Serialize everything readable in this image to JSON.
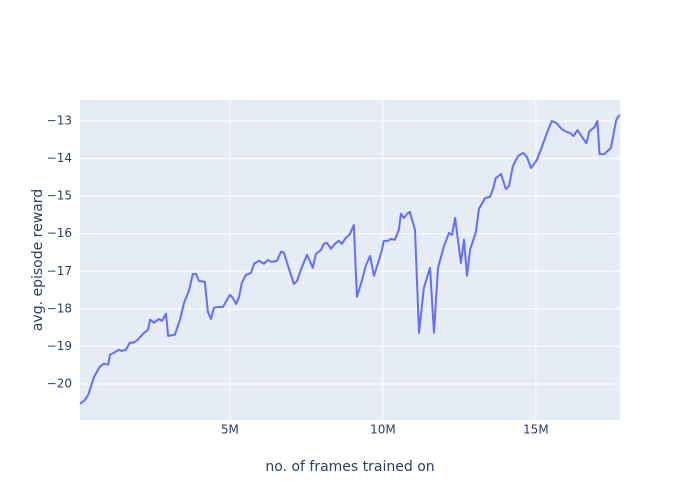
{
  "chart_data": {
    "type": "line",
    "xlabel": "no. of frames trained on",
    "ylabel": "avg. episode reward",
    "xlim": [
      100000,
      17750000
    ],
    "ylim": [
      -20.96,
      -12.44
    ],
    "xticks": [
      {
        "value": 5000000,
        "label": "5M"
      },
      {
        "value": 10000000,
        "label": "10M"
      },
      {
        "value": 15000000,
        "label": "15M"
      }
    ],
    "yticks": [
      {
        "value": -20,
        "label": "−20"
      },
      {
        "value": -19,
        "label": "−19"
      },
      {
        "value": -18,
        "label": "−18"
      },
      {
        "value": -17,
        "label": "−17"
      },
      {
        "value": -16,
        "label": "−16"
      },
      {
        "value": -15,
        "label": "−15"
      },
      {
        "value": -14,
        "label": "−14"
      },
      {
        "value": -13,
        "label": "−13"
      }
    ],
    "grid": true,
    "series": [
      {
        "color": "#636efa",
        "x": [
          100000,
          230000,
          360000,
          560000,
          750000,
          880000,
          1020000,
          1080000,
          1210000,
          1370000,
          1470000,
          1600000,
          1730000,
          1860000,
          1990000,
          2190000,
          2320000,
          2390000,
          2520000,
          2680000,
          2780000,
          2910000,
          2980000,
          3200000,
          3370000,
          3500000,
          3660000,
          3790000,
          3890000,
          3990000,
          4180000,
          4280000,
          4380000,
          4480000,
          4610000,
          4770000,
          5000000,
          5100000,
          5200000,
          5300000,
          5390000,
          5520000,
          5690000,
          5790000,
          5950000,
          6110000,
          6240000,
          6370000,
          6540000,
          6670000,
          6770000,
          6900000,
          7090000,
          7190000,
          7320000,
          7520000,
          7650000,
          7710000,
          7810000,
          7980000,
          8070000,
          8170000,
          8300000,
          8430000,
          8560000,
          8660000,
          8790000,
          8920000,
          9050000,
          9150000,
          9320000,
          9450000,
          9580000,
          9710000,
          9840000,
          9970000,
          10030000,
          10170000,
          10260000,
          10390000,
          10520000,
          10590000,
          10690000,
          10790000,
          10880000,
          11050000,
          11180000,
          11340000,
          11540000,
          11670000,
          11800000,
          12000000,
          12160000,
          12260000,
          12360000,
          12550000,
          12650000,
          12750000,
          12850000,
          13040000,
          13140000,
          13340000,
          13500000,
          13600000,
          13690000,
          13860000,
          14020000,
          14120000,
          14250000,
          14420000,
          14580000,
          14710000,
          14840000,
          15030000,
          15160000,
          15360000,
          15520000,
          15670000,
          15840000,
          16000000,
          16130000,
          16230000,
          16360000,
          16490000,
          16650000,
          16750000,
          16920000,
          17010000,
          17080000,
          17240000,
          17340000,
          17450000,
          17620000,
          17680000,
          17750000
        ],
        "values": [
          -20.53,
          -20.45,
          -20.31,
          -19.81,
          -19.54,
          -19.46,
          -19.49,
          -19.22,
          -19.17,
          -19.09,
          -19.12,
          -19.09,
          -18.9,
          -18.9,
          -18.82,
          -18.64,
          -18.56,
          -18.29,
          -18.37,
          -18.27,
          -18.32,
          -18.13,
          -18.72,
          -18.69,
          -18.29,
          -17.84,
          -17.52,
          -17.07,
          -17.07,
          -17.26,
          -17.28,
          -18.08,
          -18.27,
          -17.97,
          -17.95,
          -17.95,
          -17.63,
          -17.71,
          -17.87,
          -17.68,
          -17.31,
          -17.1,
          -17.04,
          -16.8,
          -16.72,
          -16.8,
          -16.7,
          -16.75,
          -16.72,
          -16.48,
          -16.51,
          -16.86,
          -17.34,
          -17.26,
          -16.96,
          -16.56,
          -16.8,
          -16.91,
          -16.54,
          -16.43,
          -16.27,
          -16.24,
          -16.4,
          -16.27,
          -16.19,
          -16.27,
          -16.11,
          -16.01,
          -15.77,
          -17.68,
          -17.23,
          -16.83,
          -16.59,
          -17.12,
          -16.78,
          -16.43,
          -16.19,
          -16.19,
          -16.14,
          -16.16,
          -15.9,
          -15.47,
          -15.58,
          -15.47,
          -15.42,
          -15.9,
          -18.64,
          -17.44,
          -16.91,
          -18.64,
          -16.91,
          -16.32,
          -15.98,
          -16.03,
          -15.58,
          -16.78,
          -16.16,
          -17.12,
          -16.43,
          -15.95,
          -15.34,
          -15.05,
          -15.02,
          -14.81,
          -14.52,
          -14.41,
          -14.81,
          -14.73,
          -14.2,
          -13.93,
          -13.85,
          -13.96,
          -14.25,
          -14.04,
          -13.77,
          -13.32,
          -13,
          -13.05,
          -13.21,
          -13.29,
          -13.32,
          -13.4,
          -13.24,
          -13.4,
          -13.59,
          -13.27,
          -13.16,
          -13,
          -13.88,
          -13.88,
          -13.8,
          -13.72,
          -13,
          -12.89,
          -12.84
        ]
      }
    ]
  }
}
